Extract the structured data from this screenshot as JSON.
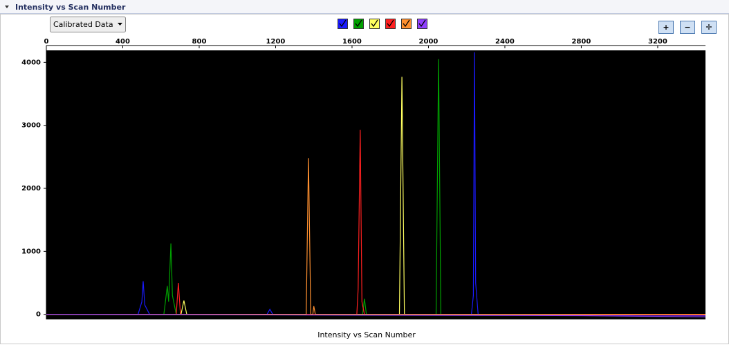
{
  "panel": {
    "title": "Intensity vs Scan Number",
    "dropdown": "Calibrated Data"
  },
  "chart_data": {
    "type": "line",
    "xlabel": "Intensity vs Scan Number",
    "xlim": [
      0,
      3450
    ],
    "xticks": [
      0,
      400,
      800,
      1200,
      1600,
      2000,
      2400,
      2800,
      3200
    ],
    "ylim": [
      -80,
      4190
    ],
    "yticks": [
      0,
      1000,
      2000,
      3000,
      4000
    ],
    "series": [
      {
        "color": "#1a1aff",
        "x": [
          0,
          480,
          500,
          507,
          515,
          540,
          1155,
          1170,
          1185,
          2225,
          2235,
          2241,
          2247,
          2260,
          3450
        ],
        "values": [
          0,
          0,
          200,
          525,
          150,
          0,
          0,
          80,
          0,
          0,
          300,
          4160,
          500,
          0,
          -20
        ]
      },
      {
        "color": "#00a000",
        "x": [
          0,
          615,
          633,
          640,
          652,
          660,
          680,
          1655,
          1665,
          1675,
          2040,
          2053,
          2065,
          3450
        ],
        "values": [
          0,
          0,
          450,
          200,
          1125,
          300,
          0,
          0,
          250,
          0,
          0,
          4050,
          0,
          0
        ]
      },
      {
        "color": "#ffff60",
        "x": [
          0,
          705,
          720,
          735,
          1848,
          1861,
          1874,
          3450
        ],
        "values": [
          0,
          0,
          220,
          0,
          0,
          3770,
          0,
          0
        ]
      },
      {
        "color": "#ff2020",
        "x": [
          0,
          680,
          691,
          702,
          1625,
          1632,
          1643,
          1652,
          1665,
          3450
        ],
        "values": [
          0,
          0,
          500,
          0,
          0,
          400,
          2930,
          200,
          0,
          -10
        ]
      },
      {
        "color": "#ff9030",
        "x": [
          0,
          1360,
          1372,
          1384,
          1395,
          1400,
          1408,
          3450
        ],
        "values": [
          0,
          0,
          2480,
          0,
          0,
          130,
          0,
          0
        ]
      },
      {
        "color": "#9040ff",
        "x": [
          0,
          2800,
          3450
        ],
        "values": [
          0,
          -20,
          -40
        ]
      }
    ]
  }
}
